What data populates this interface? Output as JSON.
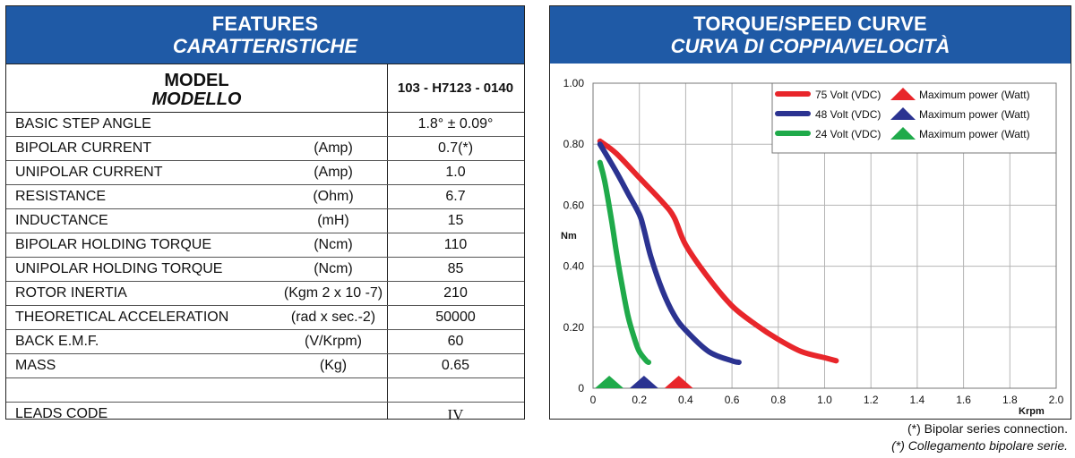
{
  "features": {
    "title": "FEATURES",
    "title_it": "CARATTERISTICHE",
    "model_label": "MODEL",
    "model_label_it": "MODELLO",
    "model_value": "103 - H7123 - 0140",
    "rows": [
      {
        "name": "BASIC STEP ANGLE",
        "unit": "",
        "value": "1.8° ± 0.09°"
      },
      {
        "name": "BIPOLAR CURRENT",
        "unit": "(Amp)",
        "value": "0.7(*)"
      },
      {
        "name": "UNIPOLAR CURRENT",
        "unit": "(Amp)",
        "value": "1.0"
      },
      {
        "name": "RESISTANCE",
        "unit": "(Ohm)",
        "value": "6.7"
      },
      {
        "name": "INDUCTANCE",
        "unit": "(mH)",
        "value": "15"
      },
      {
        "name": "BIPOLAR HOLDING TORQUE",
        "unit": "(Ncm)",
        "value": "110"
      },
      {
        "name": "UNIPOLAR HOLDING TORQUE",
        "unit": "(Ncm)",
        "value": "85"
      },
      {
        "name": "ROTOR INERTIA",
        "unit": "(Kgm 2 x 10 -7)",
        "value": "210"
      },
      {
        "name": "THEORETICAL ACCELERATION",
        "unit": "(rad x sec.-2)",
        "value": "50000"
      },
      {
        "name": "BACK E.M.F.",
        "unit": "(V/Krpm)",
        "value": "60"
      },
      {
        "name": "MASS",
        "unit": "(Kg)",
        "value": "0.65"
      },
      {
        "name": "",
        "unit": "",
        "value": ""
      },
      {
        "name": "LEADS CODE",
        "unit": "",
        "value": "IV"
      }
    ]
  },
  "curve": {
    "title": "TORQUE/SPEED CURVE",
    "title_it": "CURVA DI COPPIA/VELOCITÀ"
  },
  "footnotes": {
    "line1": "(*) Bipolar series connection.",
    "line2": "(*) Collegamento bipolare serie."
  },
  "chart_data": {
    "type": "line",
    "xlabel": "Krpm",
    "ylabel": "Nm",
    "xlim": [
      0,
      2.0
    ],
    "ylim": [
      0,
      1.0
    ],
    "xticks": [
      "0",
      "0.2",
      "0.4",
      "0.6",
      "0.8",
      "1.0",
      "1.2",
      "1.4",
      "1.6",
      "1.8",
      "2.0"
    ],
    "yticks": [
      "0",
      "0.20",
      "0.40",
      "0.60",
      "0.80",
      "1.00"
    ],
    "grid": true,
    "legend_position": "top-right",
    "series": [
      {
        "name": "75 Volt (VDC)",
        "marker_label": "Maximum power (Watt)",
        "color": "#e8262b",
        "marker_x": 0.37,
        "x": [
          0.03,
          0.1,
          0.2,
          0.3,
          0.35,
          0.4,
          0.5,
          0.6,
          0.7,
          0.8,
          0.9,
          1.0,
          1.05
        ],
        "y": [
          0.81,
          0.77,
          0.69,
          0.61,
          0.56,
          0.47,
          0.36,
          0.27,
          0.21,
          0.16,
          0.12,
          0.1,
          0.09
        ]
      },
      {
        "name": "48 Volt (VDC)",
        "marker_label": "Maximum power (Watt)",
        "color": "#2b3391",
        "marker_x": 0.22,
        "x": [
          0.03,
          0.1,
          0.15,
          0.2,
          0.22,
          0.25,
          0.3,
          0.35,
          0.4,
          0.5,
          0.6,
          0.63
        ],
        "y": [
          0.8,
          0.71,
          0.64,
          0.57,
          0.52,
          0.43,
          0.32,
          0.24,
          0.19,
          0.12,
          0.09,
          0.085
        ]
      },
      {
        "name": "24 Volt (VDC)",
        "marker_label": "Maximum power (Watt)",
        "color": "#1faa4a",
        "marker_x": 0.07,
        "x": [
          0.03,
          0.05,
          0.08,
          0.1,
          0.12,
          0.15,
          0.18,
          0.2,
          0.23,
          0.24
        ],
        "y": [
          0.74,
          0.68,
          0.55,
          0.45,
          0.36,
          0.24,
          0.16,
          0.12,
          0.09,
          0.085
        ]
      }
    ]
  }
}
